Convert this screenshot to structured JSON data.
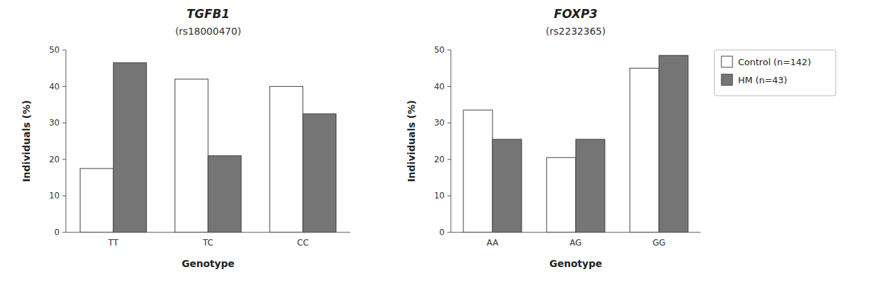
{
  "chart_data": [
    {
      "type": "bar",
      "title": "TGFB1",
      "subtitle": "(rs18000470)",
      "categories": [
        "TT",
        "TC",
        "CC"
      ],
      "series": [
        {
          "color": "#ffffff",
          "values": [
            17.5,
            42.0,
            40.0
          ]
        },
        {
          "color": "#757575",
          "values": [
            46.5,
            21.0,
            32.5
          ]
        }
      ],
      "x_label": "Genotype",
      "y_label": "Individuals (%)",
      "ylim": [
        0,
        50
      ],
      "yticks": [
        0,
        10,
        20,
        30,
        40,
        50
      ],
      "grid": false
    },
    {
      "type": "bar",
      "title": "FOXP3",
      "subtitle": "(rs2232365)",
      "categories": [
        "AA",
        "AG",
        "GG"
      ],
      "series": [
        {
          "name": "Control (n=142)",
          "color": "#ffffff",
          "values": [
            33.5,
            20.5,
            45.0
          ]
        },
        {
          "name": "HM (n=43)",
          "color": "#757575",
          "values": [
            25.5,
            25.5,
            48.5
          ]
        }
      ],
      "x_label": "Genotype",
      "y_label": "Individuals (%)",
      "ylim": [
        0,
        50
      ],
      "yticks": [
        0,
        10,
        20,
        30,
        40,
        50
      ],
      "grid": false,
      "legend": "upper right"
    }
  ]
}
